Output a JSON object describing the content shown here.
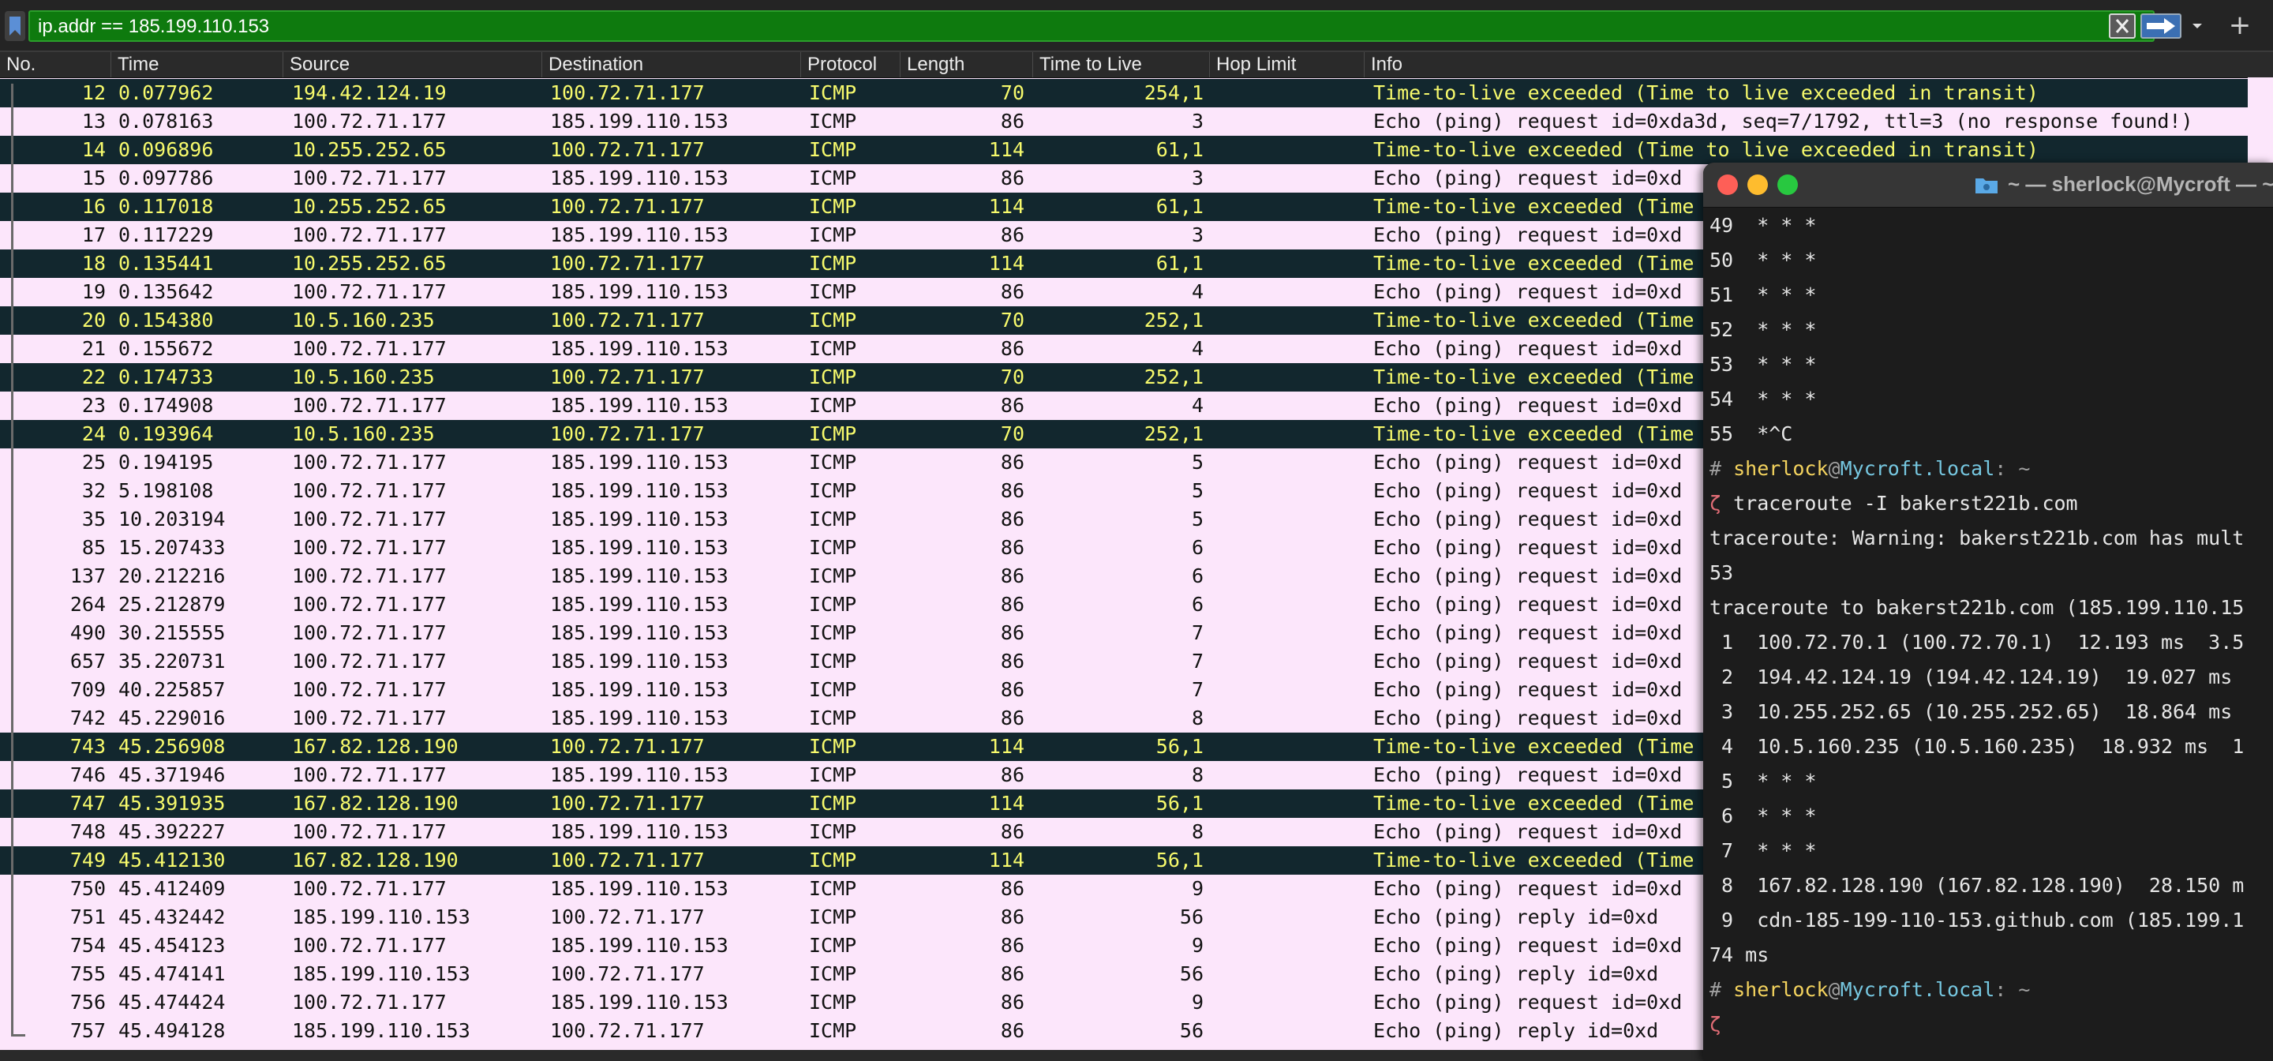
{
  "filter": {
    "text": "ip.addr == 185.199.110.153",
    "add_label": "+"
  },
  "columns": [
    "No.",
    "Time",
    "Source",
    "Destination",
    "Protocol",
    "Length",
    "Time to Live",
    "Hop Limit",
    "Info"
  ],
  "packets": [
    {
      "no": "12",
      "time": "0.077962",
      "src": "194.42.124.19",
      "dst": "100.72.71.177",
      "proto": "ICMP",
      "len": "70",
      "ttl": "254,1",
      "info": "Time-to-live exceeded (Time to live exceeded in transit)",
      "type": "ttl"
    },
    {
      "no": "13",
      "time": "0.078163",
      "src": "100.72.71.177",
      "dst": "185.199.110.153",
      "proto": "ICMP",
      "len": "86",
      "ttl": "3",
      "info": "Echo (ping) request  id=0xda3d, seq=7/1792, ttl=3 (no response found!)",
      "type": "norm"
    },
    {
      "no": "14",
      "time": "0.096896",
      "src": "10.255.252.65",
      "dst": "100.72.71.177",
      "proto": "ICMP",
      "len": "114",
      "ttl": "61,1",
      "info": "Time-to-live exceeded (Time to live exceeded in transit)",
      "type": "ttl"
    },
    {
      "no": "15",
      "time": "0.097786",
      "src": "100.72.71.177",
      "dst": "185.199.110.153",
      "proto": "ICMP",
      "len": "86",
      "ttl": "3",
      "info": "Echo (ping) request  id=0xd",
      "type": "norm"
    },
    {
      "no": "16",
      "time": "0.117018",
      "src": "10.255.252.65",
      "dst": "100.72.71.177",
      "proto": "ICMP",
      "len": "114",
      "ttl": "61,1",
      "info": "Time-to-live exceeded (Time",
      "type": "ttl"
    },
    {
      "no": "17",
      "time": "0.117229",
      "src": "100.72.71.177",
      "dst": "185.199.110.153",
      "proto": "ICMP",
      "len": "86",
      "ttl": "3",
      "info": "Echo (ping) request  id=0xd",
      "type": "norm"
    },
    {
      "no": "18",
      "time": "0.135441",
      "src": "10.255.252.65",
      "dst": "100.72.71.177",
      "proto": "ICMP",
      "len": "114",
      "ttl": "61,1",
      "info": "Time-to-live exceeded (Time",
      "type": "ttl"
    },
    {
      "no": "19",
      "time": "0.135642",
      "src": "100.72.71.177",
      "dst": "185.199.110.153",
      "proto": "ICMP",
      "len": "86",
      "ttl": "4",
      "info": "Echo (ping) request  id=0xd",
      "type": "norm"
    },
    {
      "no": "20",
      "time": "0.154380",
      "src": "10.5.160.235",
      "dst": "100.72.71.177",
      "proto": "ICMP",
      "len": "70",
      "ttl": "252,1",
      "info": "Time-to-live exceeded (Time",
      "type": "ttl"
    },
    {
      "no": "21",
      "time": "0.155672",
      "src": "100.72.71.177",
      "dst": "185.199.110.153",
      "proto": "ICMP",
      "len": "86",
      "ttl": "4",
      "info": "Echo (ping) request  id=0xd",
      "type": "norm"
    },
    {
      "no": "22",
      "time": "0.174733",
      "src": "10.5.160.235",
      "dst": "100.72.71.177",
      "proto": "ICMP",
      "len": "70",
      "ttl": "252,1",
      "info": "Time-to-live exceeded (Time",
      "type": "ttl"
    },
    {
      "no": "23",
      "time": "0.174908",
      "src": "100.72.71.177",
      "dst": "185.199.110.153",
      "proto": "ICMP",
      "len": "86",
      "ttl": "4",
      "info": "Echo (ping) request  id=0xd",
      "type": "norm"
    },
    {
      "no": "24",
      "time": "0.193964",
      "src": "10.5.160.235",
      "dst": "100.72.71.177",
      "proto": "ICMP",
      "len": "70",
      "ttl": "252,1",
      "info": "Time-to-live exceeded (Time",
      "type": "ttl"
    },
    {
      "no": "25",
      "time": "0.194195",
      "src": "100.72.71.177",
      "dst": "185.199.110.153",
      "proto": "ICMP",
      "len": "86",
      "ttl": "5",
      "info": "Echo (ping) request  id=0xd",
      "type": "norm"
    },
    {
      "no": "32",
      "time": "5.198108",
      "src": "100.72.71.177",
      "dst": "185.199.110.153",
      "proto": "ICMP",
      "len": "86",
      "ttl": "5",
      "info": "Echo (ping) request  id=0xd",
      "type": "norm"
    },
    {
      "no": "35",
      "time": "10.203194",
      "src": "100.72.71.177",
      "dst": "185.199.110.153",
      "proto": "ICMP",
      "len": "86",
      "ttl": "5",
      "info": "Echo (ping) request  id=0xd",
      "type": "norm"
    },
    {
      "no": "85",
      "time": "15.207433",
      "src": "100.72.71.177",
      "dst": "185.199.110.153",
      "proto": "ICMP",
      "len": "86",
      "ttl": "6",
      "info": "Echo (ping) request  id=0xd",
      "type": "norm"
    },
    {
      "no": "137",
      "time": "20.212216",
      "src": "100.72.71.177",
      "dst": "185.199.110.153",
      "proto": "ICMP",
      "len": "86",
      "ttl": "6",
      "info": "Echo (ping) request  id=0xd",
      "type": "norm"
    },
    {
      "no": "264",
      "time": "25.212879",
      "src": "100.72.71.177",
      "dst": "185.199.110.153",
      "proto": "ICMP",
      "len": "86",
      "ttl": "6",
      "info": "Echo (ping) request  id=0xd",
      "type": "norm"
    },
    {
      "no": "490",
      "time": "30.215555",
      "src": "100.72.71.177",
      "dst": "185.199.110.153",
      "proto": "ICMP",
      "len": "86",
      "ttl": "7",
      "info": "Echo (ping) request  id=0xd",
      "type": "norm"
    },
    {
      "no": "657",
      "time": "35.220731",
      "src": "100.72.71.177",
      "dst": "185.199.110.153",
      "proto": "ICMP",
      "len": "86",
      "ttl": "7",
      "info": "Echo (ping) request  id=0xd",
      "type": "norm"
    },
    {
      "no": "709",
      "time": "40.225857",
      "src": "100.72.71.177",
      "dst": "185.199.110.153",
      "proto": "ICMP",
      "len": "86",
      "ttl": "7",
      "info": "Echo (ping) request  id=0xd",
      "type": "norm"
    },
    {
      "no": "742",
      "time": "45.229016",
      "src": "100.72.71.177",
      "dst": "185.199.110.153",
      "proto": "ICMP",
      "len": "86",
      "ttl": "8",
      "info": "Echo (ping) request  id=0xd",
      "type": "norm"
    },
    {
      "no": "743",
      "time": "45.256908",
      "src": "167.82.128.190",
      "dst": "100.72.71.177",
      "proto": "ICMP",
      "len": "114",
      "ttl": "56,1",
      "info": "Time-to-live exceeded (Time",
      "type": "ttl"
    },
    {
      "no": "746",
      "time": "45.371946",
      "src": "100.72.71.177",
      "dst": "185.199.110.153",
      "proto": "ICMP",
      "len": "86",
      "ttl": "8",
      "info": "Echo (ping) request  id=0xd",
      "type": "norm"
    },
    {
      "no": "747",
      "time": "45.391935",
      "src": "167.82.128.190",
      "dst": "100.72.71.177",
      "proto": "ICMP",
      "len": "114",
      "ttl": "56,1",
      "info": "Time-to-live exceeded (Time",
      "type": "ttl"
    },
    {
      "no": "748",
      "time": "45.392227",
      "src": "100.72.71.177",
      "dst": "185.199.110.153",
      "proto": "ICMP",
      "len": "86",
      "ttl": "8",
      "info": "Echo (ping) request  id=0xd",
      "type": "norm"
    },
    {
      "no": "749",
      "time": "45.412130",
      "src": "167.82.128.190",
      "dst": "100.72.71.177",
      "proto": "ICMP",
      "len": "114",
      "ttl": "56,1",
      "info": "Time-to-live exceeded (Time",
      "type": "ttl"
    },
    {
      "no": "750",
      "time": "45.412409",
      "src": "100.72.71.177",
      "dst": "185.199.110.153",
      "proto": "ICMP",
      "len": "86",
      "ttl": "9",
      "info": "Echo (ping) request  id=0xd",
      "type": "norm"
    },
    {
      "no": "751",
      "time": "45.432442",
      "src": "185.199.110.153",
      "dst": "100.72.71.177",
      "proto": "ICMP",
      "len": "86",
      "ttl": "56",
      "info": "Echo (ping) reply    id=0xd",
      "type": "norm"
    },
    {
      "no": "754",
      "time": "45.454123",
      "src": "100.72.71.177",
      "dst": "185.199.110.153",
      "proto": "ICMP",
      "len": "86",
      "ttl": "9",
      "info": "Echo (ping) request  id=0xd",
      "type": "norm"
    },
    {
      "no": "755",
      "time": "45.474141",
      "src": "185.199.110.153",
      "dst": "100.72.71.177",
      "proto": "ICMP",
      "len": "86",
      "ttl": "56",
      "info": "Echo (ping) reply    id=0xd",
      "type": "norm"
    },
    {
      "no": "756",
      "time": "45.474424",
      "src": "100.72.71.177",
      "dst": "185.199.110.153",
      "proto": "ICMP",
      "len": "86",
      "ttl": "9",
      "info": "Echo (ping) request  id=0xd",
      "type": "norm"
    },
    {
      "no": "757",
      "time": "45.494128",
      "src": "185.199.110.153",
      "dst": "100.72.71.177",
      "proto": "ICMP",
      "len": "86",
      "ttl": "56",
      "info": "Echo (ping) reply    id=0xd",
      "type": "norm"
    }
  ],
  "terminal": {
    "title": "~ — sherlock@Mycroft — ~",
    "lines": [
      {
        "kind": "text",
        "text": "49  * * *"
      },
      {
        "kind": "text",
        "text": "50  * * *"
      },
      {
        "kind": "text",
        "text": "51  * * *"
      },
      {
        "kind": "text",
        "text": "52  * * *"
      },
      {
        "kind": "text",
        "text": "53  * * *"
      },
      {
        "kind": "text",
        "text": "54  * * *"
      },
      {
        "kind": "text",
        "text": "55  *^C"
      },
      {
        "kind": "prompt",
        "hash": "# ",
        "user": "sherlock",
        "at": "@",
        "host": "Mycroft.local",
        "tail": ": ~"
      },
      {
        "kind": "cmd",
        "sym": "ζ",
        "text": " traceroute -I bakerst221b.com"
      },
      {
        "kind": "text",
        "text": "traceroute: Warning: bakerst221b.com has mult"
      },
      {
        "kind": "text",
        "text": "53"
      },
      {
        "kind": "text",
        "text": "traceroute to bakerst221b.com (185.199.110.15"
      },
      {
        "kind": "text",
        "text": " 1  100.72.70.1 (100.72.70.1)  12.193 ms  3.5"
      },
      {
        "kind": "text",
        "text": " 2  194.42.124.19 (194.42.124.19)  19.027 ms"
      },
      {
        "kind": "text",
        "text": " 3  10.255.252.65 (10.255.252.65)  18.864 ms"
      },
      {
        "kind": "text",
        "text": " 4  10.5.160.235 (10.5.160.235)  18.932 ms  1"
      },
      {
        "kind": "text",
        "text": " 5  * * *"
      },
      {
        "kind": "text",
        "text": " 6  * * *"
      },
      {
        "kind": "text",
        "text": " 7  * * *"
      },
      {
        "kind": "text",
        "text": " 8  167.82.128.190 (167.82.128.190)  28.150 m"
      },
      {
        "kind": "text",
        "text": " 9  cdn-185-199-110-153.github.com (185.199.1"
      },
      {
        "kind": "text",
        "text": "74 ms"
      },
      {
        "kind": "prompt",
        "hash": "# ",
        "user": "sherlock",
        "at": "@",
        "host": "Mycroft.local",
        "tail": ": ~"
      },
      {
        "kind": "cmd",
        "sym": "ζ",
        "text": ""
      }
    ]
  }
}
